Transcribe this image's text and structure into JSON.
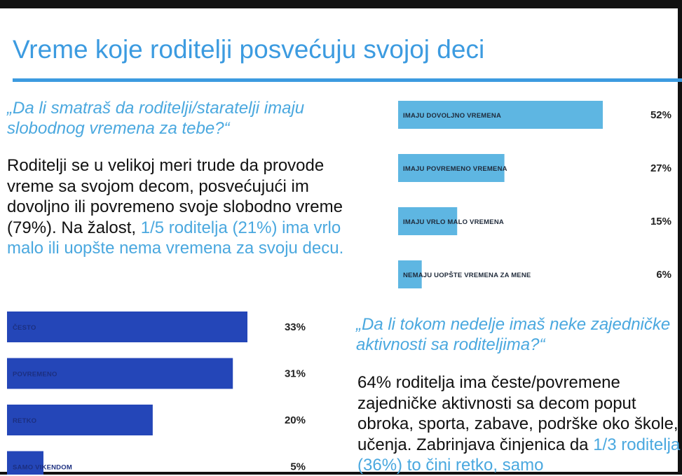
{
  "title": "Vreme koje roditelji posvećuju svojoj deci",
  "section1": {
    "question": "„Da li smatraš da roditelji/staratelji imaju slobodnog vremena za tebe?“",
    "text_main": "Roditelji se u velikoj meri trude da provode vreme sa svojom decom, posvećujući im dovoljno ili povremeno svoje slobodno vreme (79%). Na žalost, ",
    "text_highlight": "1/5 roditelja (21%) ima vrlo malo ili uopšte nema vremena za svoju decu."
  },
  "section2": {
    "question": "„Da li tokom nedelje imaš neke zajedničke aktivnosti sa roditeljima?“",
    "text_main": "64% roditelja ima česte/povremene zajedničke aktivnosti sa decom poput obroka, sporta, zabave, podrške oko škole, učenja. Zabrinjava činjenica da ",
    "text_highlight": "1/3 roditelja (36%) to čini retko, samo"
  },
  "colors": {
    "accent": "#3c9be0",
    "bar_light": "#5eb6e2",
    "bar_dark": "#2446b8"
  },
  "chart_data": [
    {
      "type": "bar",
      "orientation": "horizontal",
      "categories": [
        "IMAJU DOVOLJNO VREMENA",
        "IMAJU POVREMENO VREMENA",
        "IMAJU VRLO MALO VREMENA",
        "NEMAJU UOPŠTE VREMENA ZA MENE"
      ],
      "values": [
        52,
        27,
        15,
        6
      ],
      "labels": [
        "52%",
        "27%",
        "15%",
        "6%"
      ],
      "xlim": [
        0,
        52
      ],
      "color": "#5eb6e2"
    },
    {
      "type": "bar",
      "orientation": "horizontal",
      "categories": [
        "ČESTO",
        "POVREMENO",
        "RETKO",
        "SAMO VIKENDOM"
      ],
      "values": [
        33,
        31,
        20,
        5
      ],
      "labels": [
        "33%",
        "31%",
        "20%",
        "5%"
      ],
      "xlim": [
        0,
        33
      ],
      "color": "#2446b8"
    }
  ]
}
